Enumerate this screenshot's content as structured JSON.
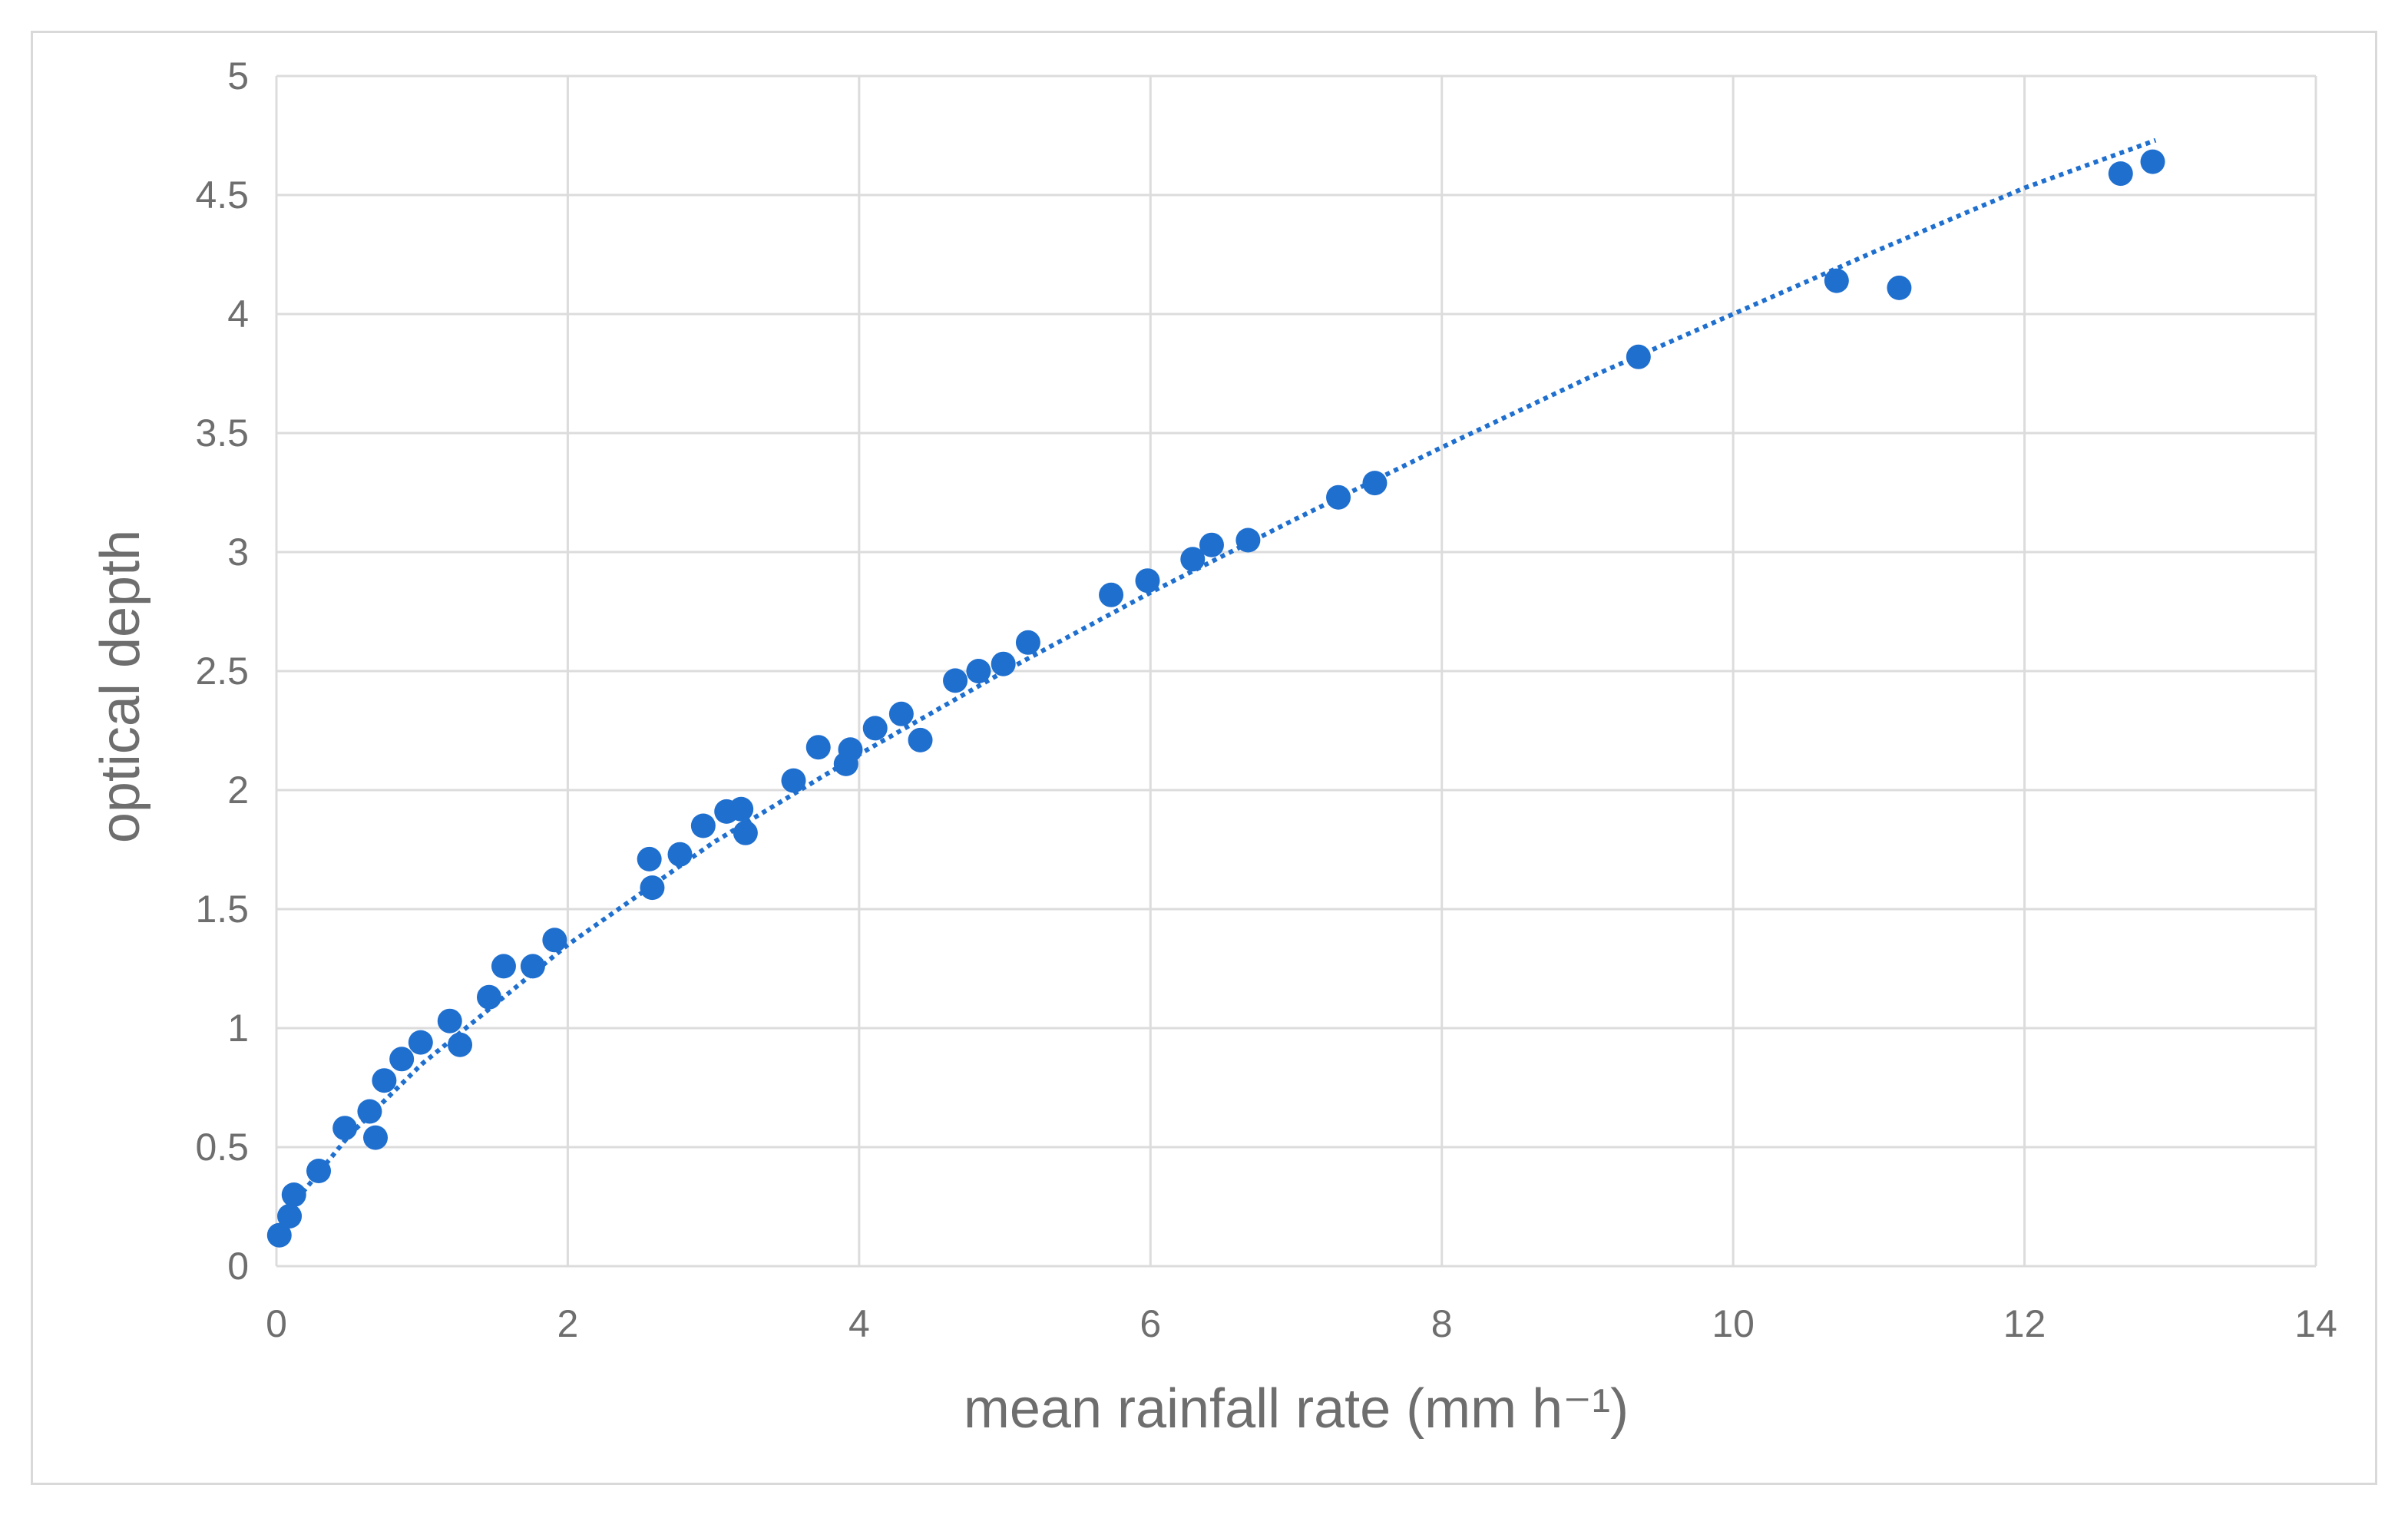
{
  "chart_data": {
    "type": "scatter",
    "xlabel": "mean rainfall rate (mm h⁻¹)",
    "ylabel": "optical depth",
    "xlim": [
      0,
      14
    ],
    "ylim": [
      0,
      5
    ],
    "x_ticks": [
      "0",
      "2",
      "4",
      "6",
      "8",
      "10",
      "12",
      "14"
    ],
    "y_ticks": [
      "0",
      "0.5",
      "1",
      "1.5",
      "2",
      "2.5",
      "3",
      "3.5",
      "4",
      "4.5",
      "5"
    ],
    "grid": true,
    "marker_color": "#1f6fcf",
    "series": [
      {
        "points": [
          [
            0.02,
            0.13
          ],
          [
            0.09,
            0.21
          ],
          [
            0.12,
            0.3
          ],
          [
            0.29,
            0.4
          ],
          [
            0.47,
            0.58
          ],
          [
            0.64,
            0.65
          ],
          [
            0.68,
            0.54
          ],
          [
            0.74,
            0.78
          ],
          [
            0.86,
            0.87
          ],
          [
            0.99,
            0.94
          ],
          [
            1.19,
            1.03
          ],
          [
            1.26,
            0.93
          ],
          [
            1.46,
            1.13
          ],
          [
            1.56,
            1.26
          ],
          [
            1.76,
            1.26
          ],
          [
            1.91,
            1.37
          ],
          [
            2.56,
            1.71
          ],
          [
            2.58,
            1.59
          ],
          [
            2.77,
            1.73
          ],
          [
            2.93,
            1.85
          ],
          [
            3.09,
            1.91
          ],
          [
            3.19,
            1.92
          ],
          [
            3.22,
            1.82
          ],
          [
            3.55,
            2.04
          ],
          [
            3.72,
            2.18
          ],
          [
            3.91,
            2.11
          ],
          [
            3.94,
            2.17
          ],
          [
            4.11,
            2.26
          ],
          [
            4.29,
            2.32
          ],
          [
            4.42,
            2.21
          ],
          [
            4.66,
            2.46
          ],
          [
            4.82,
            2.5
          ],
          [
            4.99,
            2.53
          ],
          [
            5.16,
            2.62
          ],
          [
            5.73,
            2.82
          ],
          [
            5.98,
            2.88
          ],
          [
            6.29,
            2.97
          ],
          [
            6.42,
            3.03
          ],
          [
            6.67,
            3.05
          ],
          [
            7.29,
            3.23
          ],
          [
            7.54,
            3.29
          ],
          [
            9.35,
            3.82
          ],
          [
            10.71,
            4.14
          ],
          [
            11.14,
            4.11
          ],
          [
            12.66,
            4.59
          ],
          [
            12.88,
            4.64
          ]
        ]
      }
    ],
    "trendline": {
      "style": "dotted",
      "color": "#1f6fcf",
      "points": [
        [
          0.1,
          0.25
        ],
        [
          0.5,
          0.55
        ],
        [
          1.0,
          0.85
        ],
        [
          1.5,
          1.1
        ],
        [
          2.0,
          1.35
        ],
        [
          3.0,
          1.78
        ],
        [
          4.0,
          2.15
        ],
        [
          5.0,
          2.5
        ],
        [
          6.0,
          2.83
        ],
        [
          7.0,
          3.14
        ],
        [
          8.0,
          3.44
        ],
        [
          9.0,
          3.73
        ],
        [
          10.0,
          4.0
        ],
        [
          11.0,
          4.27
        ],
        [
          12.0,
          4.53
        ],
        [
          12.9,
          4.73
        ]
      ]
    }
  }
}
